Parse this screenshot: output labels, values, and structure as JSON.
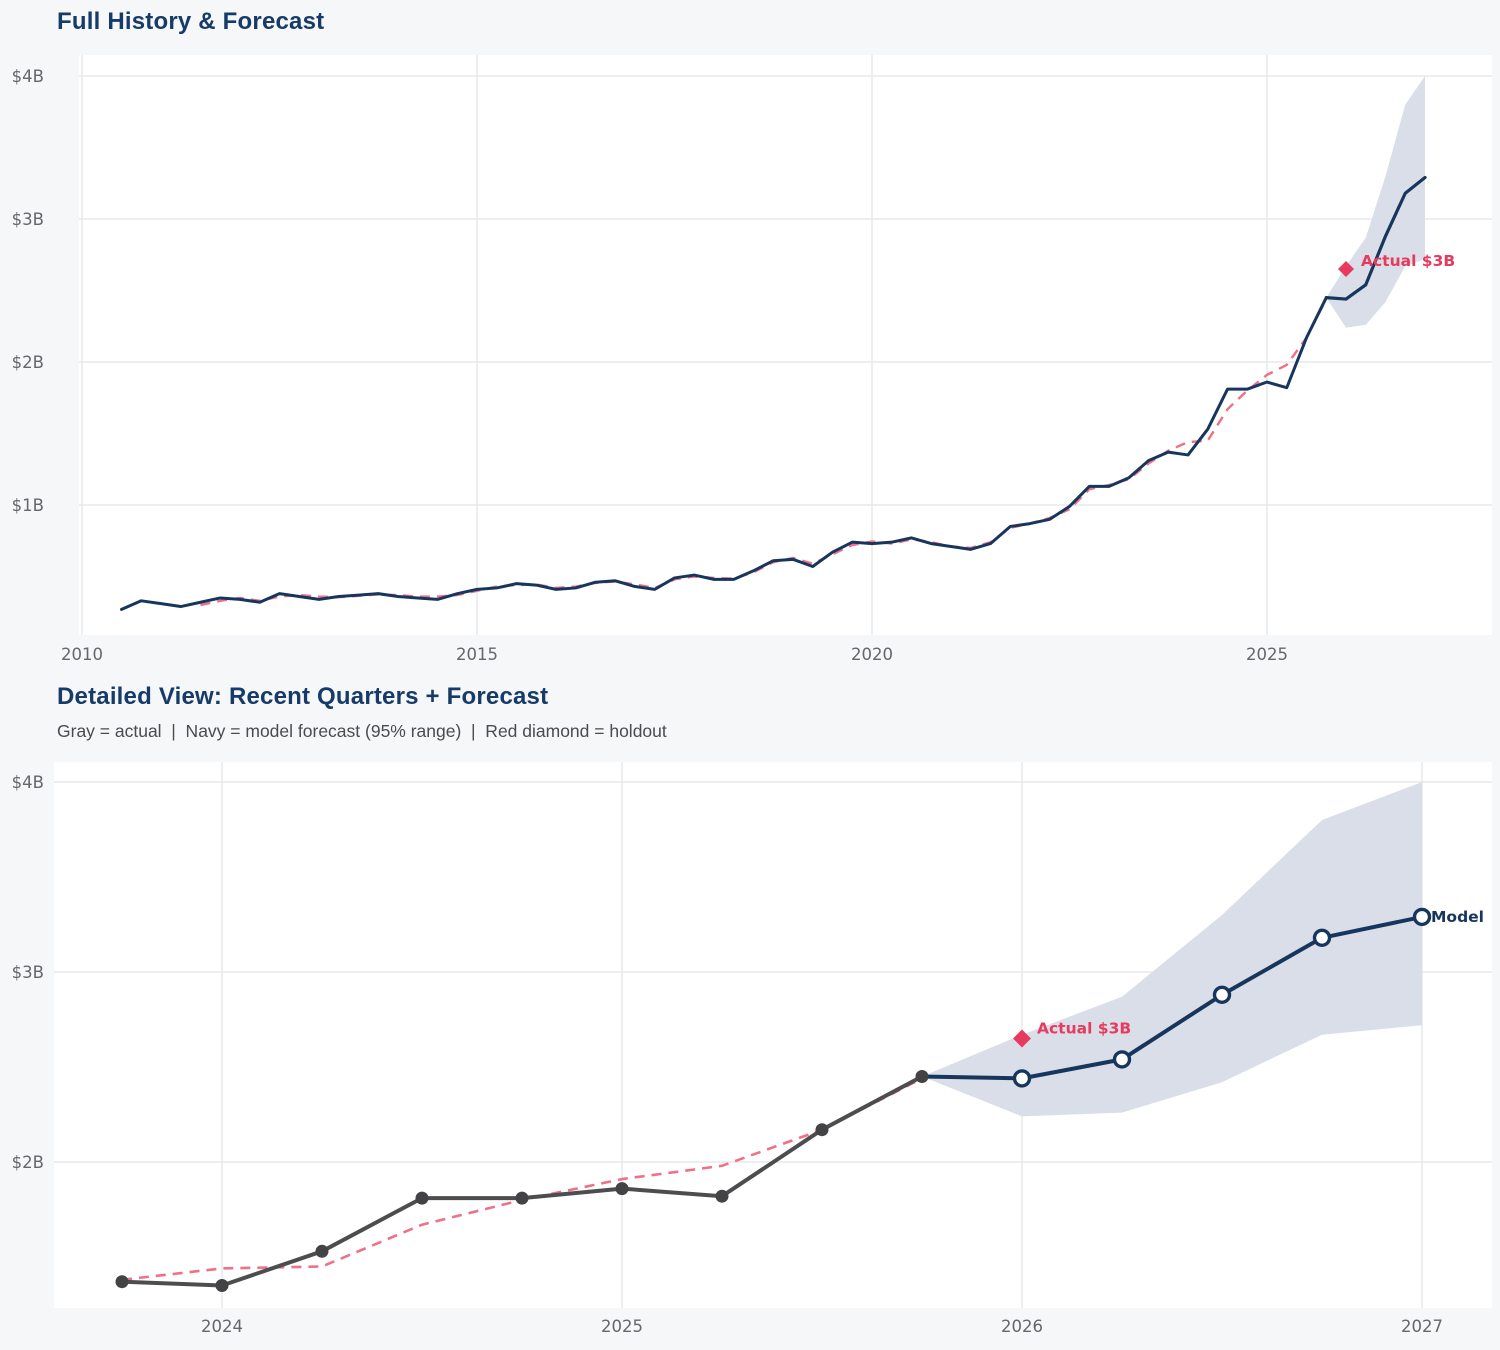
{
  "page": {
    "background_color": "#f6f7f9"
  },
  "colors": {
    "navy": "#17365e",
    "navy_title": "#173b69",
    "crimson": "#e73a5e",
    "pink_dashed": "#ee7187",
    "gray_actual": "#4d4d4f",
    "gray_dot": "#434345",
    "band_fill": "#d9dee8",
    "grid": "#e3e4e8",
    "tick_text": "#66666b",
    "subtitle_text": "#4b4b4f",
    "plot_background": "#ffffff"
  },
  "chart_data": [
    {
      "type": "line",
      "title": "Full History & Forecast",
      "xlabel": "",
      "ylabel": "",
      "x_axis": {
        "tick_values": [
          2010,
          2015,
          2020,
          2025
        ],
        "tick_labels": [
          "2010",
          "2015",
          "2020",
          "2025"
        ]
      },
      "y_axis": {
        "tick_values": [
          1,
          2,
          3,
          4
        ],
        "tick_labels": [
          "$1B",
          "$2B",
          "$3B",
          "$4B"
        ],
        "unit": "USD billions"
      },
      "grid": true,
      "series": [
        {
          "name": "actual",
          "color_role": "navy",
          "line_style": "solid",
          "x_start": 2010.5,
          "x_step": 0.25,
          "values": [
            0.27,
            0.33,
            0.31,
            0.29,
            0.32,
            0.35,
            0.34,
            0.32,
            0.38,
            0.36,
            0.34,
            0.36,
            0.37,
            0.38,
            0.36,
            0.35,
            0.34,
            0.38,
            0.41,
            0.42,
            0.45,
            0.44,
            0.41,
            0.42,
            0.46,
            0.47,
            0.43,
            0.41,
            0.49,
            0.51,
            0.48,
            0.48,
            0.54,
            0.61,
            0.62,
            0.57,
            0.67,
            0.74,
            0.73,
            0.74,
            0.77,
            0.73,
            0.71,
            0.69,
            0.73,
            0.85,
            0.87,
            0.9,
            0.99,
            1.13,
            1.13,
            1.19,
            1.31,
            1.37,
            1.35,
            1.53,
            1.81,
            1.81,
            1.86,
            1.82,
            2.17,
            2.45
          ]
        },
        {
          "name": "model_fit",
          "color_role": "pink_dashed",
          "line_style": "dashed",
          "x_start": 2011.5,
          "x_step": 0.25,
          "values": [
            0.3,
            0.33,
            0.35,
            0.33,
            0.36,
            0.37,
            0.36,
            0.355,
            0.365,
            0.375,
            0.37,
            0.36,
            0.36,
            0.37,
            0.4,
            0.43,
            0.44,
            0.445,
            0.42,
            0.43,
            0.455,
            0.465,
            0.445,
            0.42,
            0.48,
            0.5,
            0.49,
            0.485,
            0.53,
            0.6,
            0.63,
            0.59,
            0.655,
            0.72,
            0.745,
            0.73,
            0.76,
            0.74,
            0.71,
            0.7,
            0.74,
            0.84,
            0.87,
            0.91,
            0.97,
            1.11,
            1.14,
            1.18,
            1.29,
            1.38,
            1.44,
            1.45,
            1.67,
            1.8,
            1.91,
            1.98,
            2.17,
            2.44
          ]
        },
        {
          "name": "model_forecast",
          "color_role": "navy",
          "line_style": "solid",
          "x": [
            2025.75,
            2026.0,
            2026.25,
            2026.5,
            2026.75,
            2027.0
          ],
          "values": [
            2.45,
            2.44,
            2.54,
            2.88,
            3.18,
            3.29
          ]
        },
        {
          "name": "forecast_95_band",
          "color_role": "band_fill",
          "x": [
            2025.75,
            2026.0,
            2026.25,
            2026.5,
            2026.75,
            2027.0
          ],
          "lower": [
            2.45,
            2.24,
            2.26,
            2.42,
            2.67,
            2.72
          ],
          "upper": [
            2.45,
            2.67,
            2.87,
            3.3,
            3.8,
            4.0
          ]
        }
      ],
      "annotations": [
        {
          "type": "diamond",
          "label": "Actual $3B",
          "x": 2026.0,
          "y": 2.65
        }
      ]
    },
    {
      "type": "line",
      "title": "Detailed View: Recent Quarters + Forecast",
      "subtitle": "Gray = actual  |  Navy = model forecast (95% range)  |  Red diamond = holdout",
      "xlabel": "",
      "ylabel": "",
      "x_axis": {
        "tick_values": [
          2024,
          2025,
          2026,
          2027
        ],
        "tick_labels": [
          "2024",
          "2025",
          "2026",
          "2027"
        ]
      },
      "y_axis": {
        "tick_values": [
          2,
          3,
          4
        ],
        "tick_labels": [
          "$2B",
          "$3B",
          "$4B"
        ],
        "unit": "USD billions"
      },
      "grid": true,
      "series": [
        {
          "name": "actual",
          "color_role": "gray_actual",
          "line_style": "solid",
          "markers": "dot",
          "periods": [
            "2023 Q4",
            "2024 Q1",
            "2024 Q2",
            "2024 Q3",
            "2024 Q4",
            "2025 Q1",
            "2025 Q2",
            "2025 Q3",
            "2025 Q4"
          ],
          "values": [
            1.37,
            1.35,
            1.53,
            1.81,
            1.81,
            1.86,
            1.82,
            2.17,
            2.45
          ]
        },
        {
          "name": "model_fit",
          "color_role": "pink_dashed",
          "line_style": "dashed",
          "periods": [
            "2023 Q4",
            "2024 Q1",
            "2024 Q2",
            "2024 Q3",
            "2024 Q4",
            "2025 Q1",
            "2025 Q2",
            "2025 Q3",
            "2025 Q4"
          ],
          "values": [
            1.38,
            1.44,
            1.45,
            1.67,
            1.8,
            1.91,
            1.98,
            2.17,
            2.44
          ]
        },
        {
          "name": "model_forecast",
          "color_role": "navy",
          "line_style": "solid",
          "markers": "open_circle",
          "periods": [
            "2025 Q4",
            "2026 Q1",
            "2026 Q2",
            "2026 Q3",
            "2026 Q4",
            "2027 Q1"
          ],
          "values": [
            2.45,
            2.44,
            2.54,
            2.88,
            3.18,
            3.29
          ]
        },
        {
          "name": "forecast_95_band",
          "color_role": "band_fill",
          "periods": [
            "2025 Q4",
            "2026 Q1",
            "2026 Q2",
            "2026 Q3",
            "2026 Q4",
            "2027 Q1"
          ],
          "lower": [
            2.45,
            2.24,
            2.26,
            2.42,
            2.67,
            2.72
          ],
          "upper": [
            2.45,
            2.67,
            2.87,
            3.3,
            3.8,
            4.0
          ]
        }
      ],
      "annotations": [
        {
          "type": "diamond",
          "label": "Actual $3B",
          "x": 2026.0,
          "y": 2.65
        },
        {
          "type": "text",
          "label": "Model",
          "x": 2027.0,
          "y": 3.29
        }
      ]
    }
  ]
}
